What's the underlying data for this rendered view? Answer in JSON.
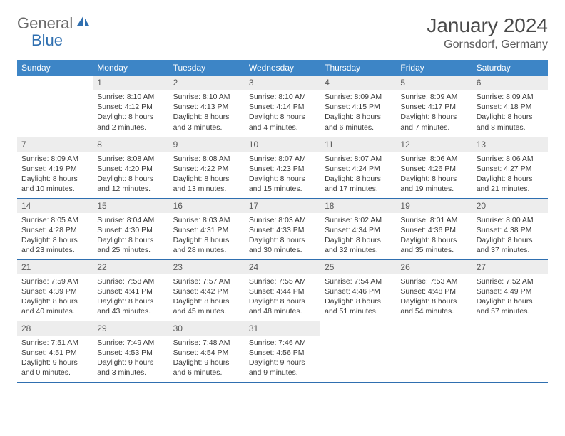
{
  "brand": {
    "part1": "General",
    "part2": "Blue"
  },
  "title": "January 2024",
  "location": "Gornsdorf, Germany",
  "colors": {
    "header_bg": "#3d85c6",
    "header_text": "#ffffff",
    "daynum_bg": "#ededed",
    "border": "#2f6fb0",
    "title_color": "#4a4a4a",
    "logo_gray": "#6a6a6a",
    "logo_blue": "#2f6fb0"
  },
  "weekdays": [
    "Sunday",
    "Monday",
    "Tuesday",
    "Wednesday",
    "Thursday",
    "Friday",
    "Saturday"
  ],
  "weeks": [
    [
      {
        "n": "",
        "t": ""
      },
      {
        "n": "1",
        "t": "Sunrise: 8:10 AM\nSunset: 4:12 PM\nDaylight: 8 hours and 2 minutes."
      },
      {
        "n": "2",
        "t": "Sunrise: 8:10 AM\nSunset: 4:13 PM\nDaylight: 8 hours and 3 minutes."
      },
      {
        "n": "3",
        "t": "Sunrise: 8:10 AM\nSunset: 4:14 PM\nDaylight: 8 hours and 4 minutes."
      },
      {
        "n": "4",
        "t": "Sunrise: 8:09 AM\nSunset: 4:15 PM\nDaylight: 8 hours and 6 minutes."
      },
      {
        "n": "5",
        "t": "Sunrise: 8:09 AM\nSunset: 4:17 PM\nDaylight: 8 hours and 7 minutes."
      },
      {
        "n": "6",
        "t": "Sunrise: 8:09 AM\nSunset: 4:18 PM\nDaylight: 8 hours and 8 minutes."
      }
    ],
    [
      {
        "n": "7",
        "t": "Sunrise: 8:09 AM\nSunset: 4:19 PM\nDaylight: 8 hours and 10 minutes."
      },
      {
        "n": "8",
        "t": "Sunrise: 8:08 AM\nSunset: 4:20 PM\nDaylight: 8 hours and 12 minutes."
      },
      {
        "n": "9",
        "t": "Sunrise: 8:08 AM\nSunset: 4:22 PM\nDaylight: 8 hours and 13 minutes."
      },
      {
        "n": "10",
        "t": "Sunrise: 8:07 AM\nSunset: 4:23 PM\nDaylight: 8 hours and 15 minutes."
      },
      {
        "n": "11",
        "t": "Sunrise: 8:07 AM\nSunset: 4:24 PM\nDaylight: 8 hours and 17 minutes."
      },
      {
        "n": "12",
        "t": "Sunrise: 8:06 AM\nSunset: 4:26 PM\nDaylight: 8 hours and 19 minutes."
      },
      {
        "n": "13",
        "t": "Sunrise: 8:06 AM\nSunset: 4:27 PM\nDaylight: 8 hours and 21 minutes."
      }
    ],
    [
      {
        "n": "14",
        "t": "Sunrise: 8:05 AM\nSunset: 4:28 PM\nDaylight: 8 hours and 23 minutes."
      },
      {
        "n": "15",
        "t": "Sunrise: 8:04 AM\nSunset: 4:30 PM\nDaylight: 8 hours and 25 minutes."
      },
      {
        "n": "16",
        "t": "Sunrise: 8:03 AM\nSunset: 4:31 PM\nDaylight: 8 hours and 28 minutes."
      },
      {
        "n": "17",
        "t": "Sunrise: 8:03 AM\nSunset: 4:33 PM\nDaylight: 8 hours and 30 minutes."
      },
      {
        "n": "18",
        "t": "Sunrise: 8:02 AM\nSunset: 4:34 PM\nDaylight: 8 hours and 32 minutes."
      },
      {
        "n": "19",
        "t": "Sunrise: 8:01 AM\nSunset: 4:36 PM\nDaylight: 8 hours and 35 minutes."
      },
      {
        "n": "20",
        "t": "Sunrise: 8:00 AM\nSunset: 4:38 PM\nDaylight: 8 hours and 37 minutes."
      }
    ],
    [
      {
        "n": "21",
        "t": "Sunrise: 7:59 AM\nSunset: 4:39 PM\nDaylight: 8 hours and 40 minutes."
      },
      {
        "n": "22",
        "t": "Sunrise: 7:58 AM\nSunset: 4:41 PM\nDaylight: 8 hours and 43 minutes."
      },
      {
        "n": "23",
        "t": "Sunrise: 7:57 AM\nSunset: 4:42 PM\nDaylight: 8 hours and 45 minutes."
      },
      {
        "n": "24",
        "t": "Sunrise: 7:55 AM\nSunset: 4:44 PM\nDaylight: 8 hours and 48 minutes."
      },
      {
        "n": "25",
        "t": "Sunrise: 7:54 AM\nSunset: 4:46 PM\nDaylight: 8 hours and 51 minutes."
      },
      {
        "n": "26",
        "t": "Sunrise: 7:53 AM\nSunset: 4:48 PM\nDaylight: 8 hours and 54 minutes."
      },
      {
        "n": "27",
        "t": "Sunrise: 7:52 AM\nSunset: 4:49 PM\nDaylight: 8 hours and 57 minutes."
      }
    ],
    [
      {
        "n": "28",
        "t": "Sunrise: 7:51 AM\nSunset: 4:51 PM\nDaylight: 9 hours and 0 minutes."
      },
      {
        "n": "29",
        "t": "Sunrise: 7:49 AM\nSunset: 4:53 PM\nDaylight: 9 hours and 3 minutes."
      },
      {
        "n": "30",
        "t": "Sunrise: 7:48 AM\nSunset: 4:54 PM\nDaylight: 9 hours and 6 minutes."
      },
      {
        "n": "31",
        "t": "Sunrise: 7:46 AM\nSunset: 4:56 PM\nDaylight: 9 hours and 9 minutes."
      },
      {
        "n": "",
        "t": ""
      },
      {
        "n": "",
        "t": ""
      },
      {
        "n": "",
        "t": ""
      }
    ]
  ]
}
